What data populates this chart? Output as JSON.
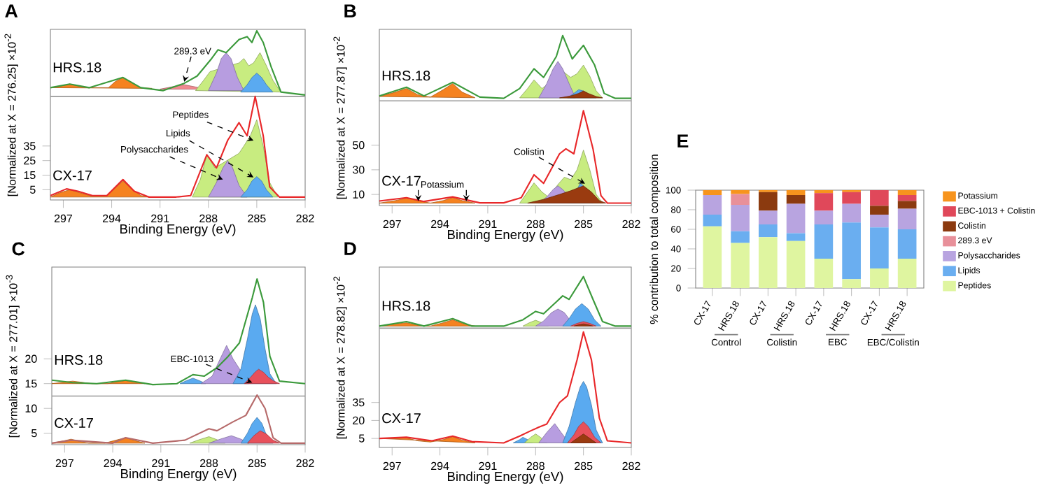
{
  "chart_data": [
    {
      "type": "area",
      "title": "A",
      "xlabel": "Binding Energy (eV)",
      "ylabel": "[Normalized at X = 276.25] ×10$^{-2}$",
      "xlim": [
        297.8,
        282
      ],
      "xticks": [
        297,
        294,
        291,
        288,
        285,
        282
      ],
      "ylim": [
        -2,
        115
      ],
      "yticks": [
        5,
        15,
        25,
        35
      ],
      "ref_lines": [
        {
          "axis": "y",
          "value": 69,
          "color": "#999999"
        }
      ],
      "annotations": [
        {
          "text": "289.3 eV",
          "x": 289.5,
          "y": 79
        },
        {
          "text": "Peptides",
          "x": 285.2,
          "y": 38.7
        },
        {
          "text": "Lipids",
          "x": 285.2,
          "y": 13.5
        },
        {
          "text": "Polysaccharides",
          "x": 287.1,
          "y": 12
        }
      ],
      "series": [
        {
          "type": "area",
          "color": "#f58220",
          "x": [
            297.8,
            297.2,
            296.6,
            296.0,
            295.2,
            294.3,
            293.8,
            293.3,
            292.8,
            292.2,
            291.5
          ],
          "values": [
            0,
            3,
            5,
            3,
            0.5,
            1,
            6,
            11,
            6,
            1,
            0
          ]
        },
        {
          "type": "area",
          "color": "#c8ec80",
          "x": [
            289.0,
            288.5,
            288.1,
            287.6,
            287.2,
            286.6,
            286.1,
            285.8,
            285.4,
            285.0,
            284.6,
            284.2,
            283.7
          ],
          "values": [
            0,
            12,
            29,
            20,
            null,
            null,
            30,
            35,
            42,
            53,
            35,
            10,
            0
          ]
        },
        {
          "type": "area",
          "color": "#b79de0",
          "x": [
            288.0,
            287.5,
            287.1,
            286.8,
            286.5,
            286.1,
            285.6
          ],
          "values": [
            0,
            10,
            20,
            25,
            20,
            8,
            0
          ]
        },
        {
          "type": "area",
          "color": "#5aaaf0",
          "x": [
            286.0,
            285.6,
            285.3,
            285.0,
            284.7,
            284.4,
            284.0
          ],
          "values": [
            0,
            5,
            11,
            14,
            11,
            5,
            0
          ]
        },
        {
          "type": "line",
          "name": "CX-17",
          "color": "#e8282a",
          "x": [
            297.8,
            296.8,
            296.1,
            295.2,
            294.3,
            293.3,
            292.6,
            291.7,
            290.0,
            289.1,
            288.1,
            287.5,
            286.8,
            286.1,
            285.6,
            285.1,
            284.6,
            284.2,
            283.6,
            282.0
          ],
          "values": [
            1,
            5.6,
            4,
            1,
            1,
            12,
            4,
            0,
            0,
            1,
            29,
            20,
            39,
            51,
            42,
            69,
            42,
            7,
            0,
            0
          ]
        },
        {
          "type": "area",
          "color": "#f58220",
          "x": [
            297.8,
            297.2,
            296.6,
            296.0,
            295.3,
            294.2,
            293.8,
            293.3,
            292.8,
            292.2,
            291.5
          ],
          "values": [
            75,
            76,
            77.5,
            76,
            75,
            75,
            79,
            82,
            79,
            75,
            74.5
          ]
        },
        {
          "type": "area",
          "color": "#f08a90",
          "x": [
            291.0,
            290.3,
            289.5,
            288.8,
            288.2
          ],
          "values": [
            74,
            75.5,
            77,
            75.5,
            74
          ]
        },
        {
          "type": "area",
          "color": "#c8ec80",
          "x": [
            288.8,
            288.3,
            287.9,
            287.5,
            287.1,
            286.5,
            286.1,
            285.8,
            285.5,
            285.2,
            284.8,
            284.4,
            284.0,
            283.5
          ],
          "values": [
            73,
            80,
            86,
            null,
            null,
            null,
            92,
            95,
            90,
            92,
            99,
            90,
            80,
            72
          ]
        },
        {
          "type": "area",
          "color": "#b79de0",
          "x": [
            288.0,
            287.5,
            287.2,
            286.9,
            286.6,
            286.2,
            285.8
          ],
          "values": [
            73,
            85,
            95,
            99,
            95,
            82,
            73
          ]
        },
        {
          "type": "area",
          "color": "#5aaaf0",
          "x": [
            286.0,
            285.6,
            285.3,
            285.0,
            284.7,
            284.4,
            284.0
          ],
          "values": [
            72,
            77,
            82,
            85,
            82,
            77,
            72
          ]
        },
        {
          "type": "line",
          "name": "HRS.18",
          "color": "#3c9a3c",
          "x": [
            297.8,
            296.6,
            295.4,
            293.3,
            292.2,
            290.8,
            289.5,
            288.7,
            287.8,
            287.4,
            286.9,
            286.1,
            285.6,
            285.3,
            285.0,
            284.6,
            284.1,
            283.5,
            282.0
          ],
          "values": [
            75,
            77.5,
            75,
            82,
            75,
            73,
            78,
            83,
            95,
            101,
            99,
            108,
            110,
            106,
            114,
            106,
            89,
            72,
            70
          ]
        }
      ]
    },
    {
      "type": "area",
      "title": "B",
      "xlabel": "Binding Energy (eV)",
      "ylabel": "[Normalized at X = 277.87] ×10$^{-2}$",
      "xlim": [
        297.8,
        282
      ],
      "xticks": [
        297,
        294,
        291,
        288,
        285,
        282
      ],
      "ylim": [
        1,
        144
      ],
      "yticks": [
        10,
        30,
        50
      ],
      "ref_lines": [
        {
          "axis": "y",
          "value": 86,
          "color": "#999999"
        }
      ],
      "annotations": [
        {
          "text": "Colistin",
          "x": 284.9,
          "y": 18.7
        },
        "Potassium"
      ],
      "series": [
        {
          "type": "area",
          "color": "#f58220",
          "x": [
            297.8,
            296.8,
            296.1,
            295.4,
            294.6,
            293.8,
            293.2,
            292.6,
            291.8
          ],
          "values": [
            3,
            5,
            7,
            5,
            3,
            5,
            7.5,
            5,
            3
          ]
        },
        {
          "type": "area",
          "color": "#c8ec80",
          "x": [
            289.0,
            288.5,
            288.1,
            287.6,
            287.2,
            286.6,
            286.2,
            285.8,
            285.4,
            285.0,
            284.6,
            284.2,
            283.8
          ],
          "values": [
            3,
            12,
            19.4,
            12,
            8,
            18,
            24,
            22,
            30,
            46,
            30,
            10,
            3
          ]
        },
        {
          "type": "area",
          "color": "#b79de0",
          "x": [
            287.8,
            287.3,
            286.9,
            286.6,
            286.3,
            285.9,
            285.5
          ],
          "values": [
            3,
            8,
            14,
            17,
            14,
            null,
            3
          ]
        },
        {
          "type": "area",
          "color": "#5aaaf0",
          "x": [
            286.0,
            285.6,
            285.4,
            285.2,
            285.0,
            284.7,
            284.4
          ],
          "values": [
            3,
            null,
            14,
            19,
            17,
            null,
            3
          ]
        },
        {
          "type": "area",
          "color": "#9a3b10",
          "x": [
            288.5,
            287.5,
            286.5,
            285.8,
            285.0,
            284.5,
            284.0,
            283.6
          ],
          "values": [
            3,
            6,
            10,
            13,
            17,
            12,
            5,
            3
          ]
        },
        {
          "type": "line",
          "name": "CX-17",
          "color": "#e8282a",
          "x": [
            297.8,
            296.1,
            295.0,
            293.2,
            291.5,
            290.0,
            288.9,
            288.1,
            287.5,
            286.5,
            286.1,
            285.6,
            285.0,
            284.4,
            283.9,
            283.5,
            282.0
          ],
          "values": [
            4.7,
            7.4,
            4.3,
            8,
            3.2,
            3.2,
            7.4,
            26,
            19,
            43,
            47,
            43,
            78,
            47,
            9,
            3,
            3
          ]
        },
        {
          "type": "area",
          "color": "#f58220",
          "x": [
            297.8,
            296.8,
            296.1,
            295.4,
            294.6,
            293.8,
            293.2,
            292.6,
            291.8
          ],
          "values": [
            89.5,
            93,
            96,
            91,
            89,
            95,
            100,
            93,
            88.5
          ]
        },
        {
          "type": "area",
          "color": "#c8ec80",
          "x": [
            289.0,
            288.5,
            288.1,
            287.6,
            287.2,
            286.6,
            286.2,
            285.8,
            285.4,
            285.0,
            284.6,
            284.2,
            283.8
          ],
          "values": [
            88.4,
            96,
            103,
            96,
            null,
            null,
            109,
            105,
            108,
            115,
            106,
            94,
            88.4
          ]
        },
        {
          "type": "area",
          "color": "#b79de0",
          "x": [
            287.8,
            287.3,
            286.9,
            286.6,
            286.3,
            285.9,
            285.5
          ],
          "values": [
            88.4,
            100,
            112,
            118,
            112,
            100,
            88.4
          ]
        },
        {
          "type": "area",
          "color": "#5aaaf0",
          "x": [
            286.0,
            285.6,
            285.3,
            285.0,
            284.6,
            284.2
          ],
          "values": [
            88.4,
            92,
            95,
            94,
            91,
            88.4
          ]
        },
        {
          "type": "area",
          "color": "#9a3b10",
          "x": [
            286.5,
            285.8,
            285.3,
            285.0,
            284.7,
            284.2,
            283.8
          ],
          "values": [
            88.4,
            90,
            92,
            94,
            92,
            89.5,
            88.4
          ]
        },
        {
          "type": "line",
          "name": "HRS.18",
          "color": "#3c9a3c",
          "x": [
            297.8,
            296.1,
            295.0,
            293.2,
            291.5,
            290.0,
            289.0,
            288.1,
            287.5,
            286.7,
            286.3,
            285.7,
            285.0,
            284.3,
            283.7,
            283.0,
            282.0
          ],
          "values": [
            90,
            97,
            90,
            101,
            89,
            88,
            96,
            112,
            105,
            122,
            139,
            120,
            131,
            115,
            92,
            88,
            88
          ]
        }
      ]
    },
    {
      "type": "area",
      "title": "C",
      "xlabel": "Binding Energy (eV)",
      "ylabel": "[Normalized at X = 277.01] ×10$^{-3}$",
      "xlim": [
        297.8,
        282
      ],
      "xticks": [
        297,
        294,
        291,
        288,
        285,
        282
      ],
      "ylim": [
        2.7,
        38.5
      ],
      "yticks": [
        5,
        10,
        15,
        20
      ],
      "ref_lines": [
        {
          "axis": "y",
          "value": 12.5,
          "color": "#999999"
        }
      ],
      "annotations": [
        {
          "text": "EBC-1013",
          "x": 285.3,
          "y": 15.2
        }
      ],
      "series": [
        {
          "type": "area",
          "color": "#f58220",
          "x": [
            297.8,
            297.0,
            296.6,
            296.1,
            295.5,
            294.5,
            293.8,
            293.2,
            292.6,
            292.0
          ],
          "values": [
            3,
            3.5,
            3.8,
            3.4,
            3,
            3,
            3.6,
            4.1,
            3.5,
            3
          ]
        },
        {
          "type": "area",
          "color": "#c8ec80",
          "x": [
            289.2,
            288.6,
            288.0,
            287.5,
            287.0
          ],
          "values": [
            3,
            3.7,
            4.3,
            3.7,
            3
          ]
        },
        {
          "type": "area",
          "color": "#b79de0",
          "x": [
            288.0,
            287.3,
            286.6,
            286.0,
            285.5
          ],
          "values": [
            3,
            3.8,
            4.5,
            3.8,
            3
          ]
        },
        {
          "type": "area",
          "color": "#5aaaf0",
          "x": [
            286.0,
            285.6,
            285.3,
            285.0,
            284.7,
            284.4,
            284.0
          ],
          "values": [
            3,
            5,
            7,
            8.2,
            7,
            4.5,
            3
          ]
        },
        {
          "type": "area",
          "color": "#e8505b",
          "x": [
            285.6,
            285.2,
            284.8,
            284.4,
            284.0,
            283.6
          ],
          "values": [
            3,
            4.5,
            5.5,
            4.8,
            3.6,
            3
          ]
        },
        {
          "type": "line",
          "name": "CX-17",
          "color": "#b66a6a",
          "x": [
            297.8,
            296.6,
            294.0,
            293.2,
            291.5,
            289.5,
            288.0,
            287.5,
            286.5,
            285.7,
            285.0,
            284.5,
            284.0,
            283.5,
            282.0
          ],
          "values": [
            3,
            3.6,
            3,
            4.1,
            3,
            3.6,
            5.9,
            5.5,
            7.3,
            8.6,
            12.7,
            10,
            4.1,
            3,
            3
          ]
        },
        {
          "type": "area",
          "color": "#f58220",
          "x": [
            297.8,
            297.0,
            296.5,
            296.0,
            295.3,
            294.3,
            293.7,
            293.2,
            292.6,
            292.0
          ],
          "values": [
            15,
            15.3,
            15.5,
            15.3,
            15,
            15,
            15.4,
            15.6,
            15.3,
            15
          ]
        },
        {
          "type": "area",
          "color": "#5aaaf0",
          "x": [
            289.8,
            289.4,
            289.0,
            288.6,
            288.2
          ],
          "values": [
            15,
            15.6,
            16.1,
            15.6,
            15
          ]
        },
        {
          "type": "area",
          "color": "#b79de0",
          "x": [
            288.5,
            287.8,
            287.3,
            286.9,
            286.5,
            286.0,
            285.5
          ],
          "values": [
            15,
            16.5,
            20,
            22.7,
            20,
            null,
            15
          ]
        },
        {
          "type": "area",
          "color": "#5aaaf0",
          "x": [
            286.5,
            286.0,
            285.6,
            285.3,
            285.1,
            284.8,
            284.5,
            284.2,
            283.8
          ],
          "values": [
            15,
            18,
            24,
            29,
            30.9,
            28,
            22,
            17,
            15
          ]
        },
        {
          "type": "area",
          "color": "#e8505b",
          "x": [
            285.8,
            285.4,
            285.1,
            284.9,
            284.6,
            284.3,
            284.0,
            283.6
          ],
          "values": [
            15,
            16.3,
            17.4,
            17.9,
            17.3,
            16.3,
            15.6,
            15
          ]
        },
        {
          "type": "line",
          "name": "HRS.18",
          "color": "#3c9a3c",
          "x": [
            297.8,
            296.5,
            295.0,
            293.2,
            291.5,
            290.0,
            289.0,
            288.3,
            287.5,
            286.8,
            286.1,
            285.3,
            285.0,
            284.6,
            284.2,
            283.6,
            282.0
          ],
          "values": [
            15.7,
            15.2,
            15,
            15.7,
            14.8,
            15,
            16.8,
            16.5,
            18.2,
            20.5,
            23.2,
            32.3,
            36.1,
            31.4,
            20.5,
            15.5,
            15
          ]
        }
      ]
    },
    {
      "type": "area",
      "title": "D",
      "xlabel": "Binding Energy (eV)",
      "ylabel": "[Normalized at X = 278.82] ×10$^{-2}$",
      "xlim": [
        297.8,
        282
      ],
      "xticks": [
        297,
        294,
        291,
        288,
        285,
        282
      ],
      "ylim": [
        -2.5,
        148
      ],
      "yticks": [
        5,
        20,
        35
      ],
      "ref_lines": [
        {
          "axis": "y",
          "value": 97,
          "color": "#999999"
        }
      ],
      "series": [
        {
          "type": "area",
          "color": "#f58220",
          "x": [
            297.8,
            296.8,
            296.1,
            295.4,
            294.6,
            293.8,
            293.2,
            292.6,
            291.8
          ],
          "values": [
            5,
            5,
            5.5,
            3,
            2,
            4,
            6.5,
            3.5,
            1.3
          ]
        },
        {
          "type": "area",
          "color": "#5aaaf0",
          "x": [
            289.4,
            289.0,
            288.8,
            288.5,
            288.2
          ],
          "values": [
            1.3,
            4,
            6,
            4,
            1.3
          ]
        },
        {
          "type": "area",
          "color": "#c8ec80",
          "x": [
            288.7,
            288.3,
            288.0,
            287.7,
            287.3
          ],
          "values": [
            1.3,
            6,
            8.75,
            6,
            1.3
          ]
        },
        {
          "type": "area",
          "color": "#b79de0",
          "x": [
            287.8,
            287.3,
            286.8,
            286.4,
            285.9
          ],
          "values": [
            1.3,
            10,
            17.4,
            10,
            1.3
          ]
        },
        {
          "type": "area",
          "color": "#5aaaf0",
          "x": [
            286.3,
            285.9,
            285.5,
            285.2,
            285.0,
            284.8,
            284.5,
            284.2,
            283.8
          ],
          "values": [
            1.3,
            15,
            35,
            48,
            52.6,
            48,
            33,
            12,
            1.3
          ]
        },
        {
          "type": "area",
          "color": "#e8505b",
          "x": [
            286.0,
            285.6,
            285.3,
            285.0,
            284.7,
            284.3,
            283.9
          ],
          "values": [
            1.3,
            8,
            15,
            18.9,
            15,
            6,
            1.3
          ]
        },
        {
          "type": "area",
          "color": "#9a3b10",
          "x": [
            285.8,
            285.4,
            285.0,
            284.6,
            284.2
          ],
          "values": [
            1.3,
            5,
            8.75,
            5,
            1.3
          ]
        },
        {
          "type": "line",
          "name": "CX-17",
          "color": "#e8282a",
          "x": [
            297.8,
            296.1,
            294.5,
            293.2,
            292.0,
            290.0,
            289.0,
            288.3,
            287.8,
            287.3,
            286.5,
            286.0,
            285.4,
            285.0,
            284.5,
            284.0,
            283.5,
            282.0
          ],
          "values": [
            5,
            6,
            3,
            7,
            2.4,
            1.3,
            7,
            11.4,
            14.4,
            17,
            35,
            40.6,
            70.6,
            93.9,
            70.6,
            21.9,
            3,
            1.3
          ]
        },
        {
          "type": "area",
          "color": "#f58220",
          "x": [
            297.8,
            296.8,
            296.1,
            295.4,
            294.6,
            293.8,
            293.2,
            292.6,
            291.8
          ],
          "values": [
            98.75,
            100.5,
            101.5,
            99.5,
            98.75,
            101.5,
            104,
            101,
            98.75
          ]
        },
        {
          "type": "area",
          "color": "#c8ec80",
          "x": [
            288.8,
            288.4,
            288.0,
            287.6,
            287.2
          ],
          "values": [
            98.75,
            101.5,
            103.6,
            101.5,
            98.75
          ]
        },
        {
          "type": "area",
          "color": "#b79de0",
          "x": [
            288.0,
            287.5,
            287.0,
            286.6,
            286.2,
            285.8,
            285.4
          ],
          "values": [
            98.75,
            103,
            110,
            113,
            110,
            103,
            98.75
          ]
        },
        {
          "type": "area",
          "color": "#5aaaf0",
          "x": [
            286.3,
            285.9,
            285.5,
            285.1,
            284.7,
            284.3,
            283.9
          ],
          "values": [
            98.75,
            105,
            113,
            117.5,
            113,
            104,
            98.75
          ]
        },
        {
          "type": "area",
          "color": "#e8505b",
          "x": [
            285.8,
            285.4,
            285.0,
            284.6,
            284.2
          ],
          "values": [
            98.75,
            101,
            102.5,
            101,
            98.75
          ]
        },
        {
          "type": "area",
          "color": "#9a3b10",
          "x": [
            285.6,
            285.3,
            285.0,
            284.7,
            284.4
          ],
          "values": [
            98.75,
            99.8,
            100.6,
            99.8,
            98.75
          ]
        },
        {
          "type": "line",
          "name": "HRS.18",
          "color": "#3c9a3c",
          "x": [
            297.8,
            296.1,
            295.0,
            293.2,
            292.0,
            290.0,
            288.8,
            288.0,
            287.5,
            286.7,
            286.3,
            285.9,
            285.0,
            284.4,
            283.8,
            283.0,
            282.0
          ],
          "values": [
            98.75,
            102.5,
            98.75,
            105,
            98.75,
            98.75,
            104,
            111,
            109,
            119,
            124,
            121,
            140,
            121,
            102.5,
            98.75,
            98.75
          ]
        }
      ]
    },
    {
      "type": "bar",
      "title": "E",
      "stacked": true,
      "ylabel": "% contribution to total composition",
      "ylim": [
        0,
        100
      ],
      "yticks": [
        0,
        20,
        40,
        60,
        80,
        100
      ],
      "legend": "right",
      "categories": [
        "CX-17",
        "HRS.18",
        "CX-17",
        "HRS.18",
        "CX-17",
        "HRS.18",
        "CX-17",
        "HRS.18"
      ],
      "annotations": [
        "Control",
        "Colistin",
        "EBC",
        "EBC/Colistin"
      ],
      "series": [
        {
          "name": "Peptides",
          "color": "#dff5a0",
          "values": [
            63,
            46,
            52,
            48,
            30,
            9,
            20,
            30
          ]
        },
        {
          "name": "Lipids",
          "color": "#6aaef0",
          "values": [
            12,
            12,
            13,
            8,
            35,
            58,
            42,
            30
          ]
        },
        {
          "name": "Polysaccharides",
          "color": "#b8a4e0",
          "values": [
            20,
            27,
            14,
            30,
            14,
            19,
            13,
            21
          ]
        },
        {
          "name": "289.3 eV",
          "color": "#e8909a",
          "values": [
            0,
            11,
            0,
            0,
            0,
            0,
            0,
            0
          ]
        },
        {
          "name": "Colistin",
          "color": "#8b3a0f",
          "values": [
            0,
            0,
            19,
            9,
            0,
            0,
            9,
            8
          ]
        },
        {
          "name": "EBC-1013 + Colistin",
          "color": "#e0485a",
          "values": [
            0,
            0,
            0,
            0,
            18,
            12,
            16,
            6
          ]
        },
        {
          "name": "Potassium",
          "color": "#f7941d",
          "values": [
            5,
            4,
            2,
            5,
            3,
            2,
            0,
            5
          ]
        }
      ]
    }
  ]
}
